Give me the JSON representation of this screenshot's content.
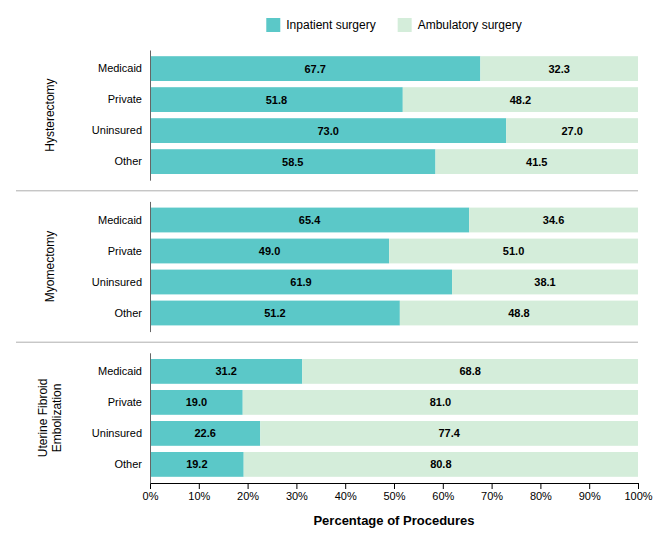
{
  "chart_data": {
    "type": "bar",
    "orientation": "horizontal",
    "stacked": true,
    "data_labels": true,
    "xlabel": "Percentage of Procedures",
    "groups": [
      "Hysterectomy",
      "Myomectomy",
      "Uterine Fibroid\nEmbolization"
    ],
    "categories": [
      "Medicaid",
      "Private",
      "Uninsured",
      "Other",
      "Medicaid",
      "Private",
      "Uninsured",
      "Other",
      "Medicaid",
      "Private",
      "Uninsured",
      "Other"
    ],
    "series": [
      {
        "name": "Inpatient surgery",
        "color": "#5BC8C8",
        "values": [
          67.7,
          51.8,
          73.0,
          58.5,
          65.4,
          49.0,
          61.9,
          51.2,
          31.2,
          19.0,
          22.6,
          19.2
        ],
        "value_labels": [
          "67.7",
          "51.8",
          "73.0",
          "58.5",
          "65.4",
          "49.0",
          "61.9",
          "51.2",
          "31.2",
          "19.0",
          "22.6",
          "19.2"
        ]
      },
      {
        "name": "Ambulatory surgery",
        "color": "#D4EDDA",
        "values": [
          32.3,
          48.2,
          27.0,
          41.5,
          34.6,
          51.0,
          38.1,
          48.8,
          68.8,
          81.0,
          77.4,
          80.8
        ],
        "value_labels": [
          "32.3",
          "48.2",
          "27.0",
          "41.5",
          "34.6",
          "51.0",
          "38.1",
          "48.8",
          "68.8",
          "81.0",
          "77.4",
          "80.8"
        ]
      }
    ],
    "xlim": [
      0,
      100
    ],
    "xticks": [
      {
        "value": 0,
        "label": "0%"
      },
      {
        "value": 10,
        "label": "10%"
      },
      {
        "value": 20,
        "label": "20%"
      },
      {
        "value": 30,
        "label": "30%"
      },
      {
        "value": 40,
        "label": "40%"
      },
      {
        "value": 50,
        "label": "50%"
      },
      {
        "value": 60,
        "label": "60%"
      },
      {
        "value": 70,
        "label": "70%"
      },
      {
        "value": 80,
        "label": "80%"
      },
      {
        "value": 90,
        "label": "90%"
      },
      {
        "value": 100,
        "label": "100%"
      }
    ],
    "grid": false,
    "legend": "top"
  }
}
